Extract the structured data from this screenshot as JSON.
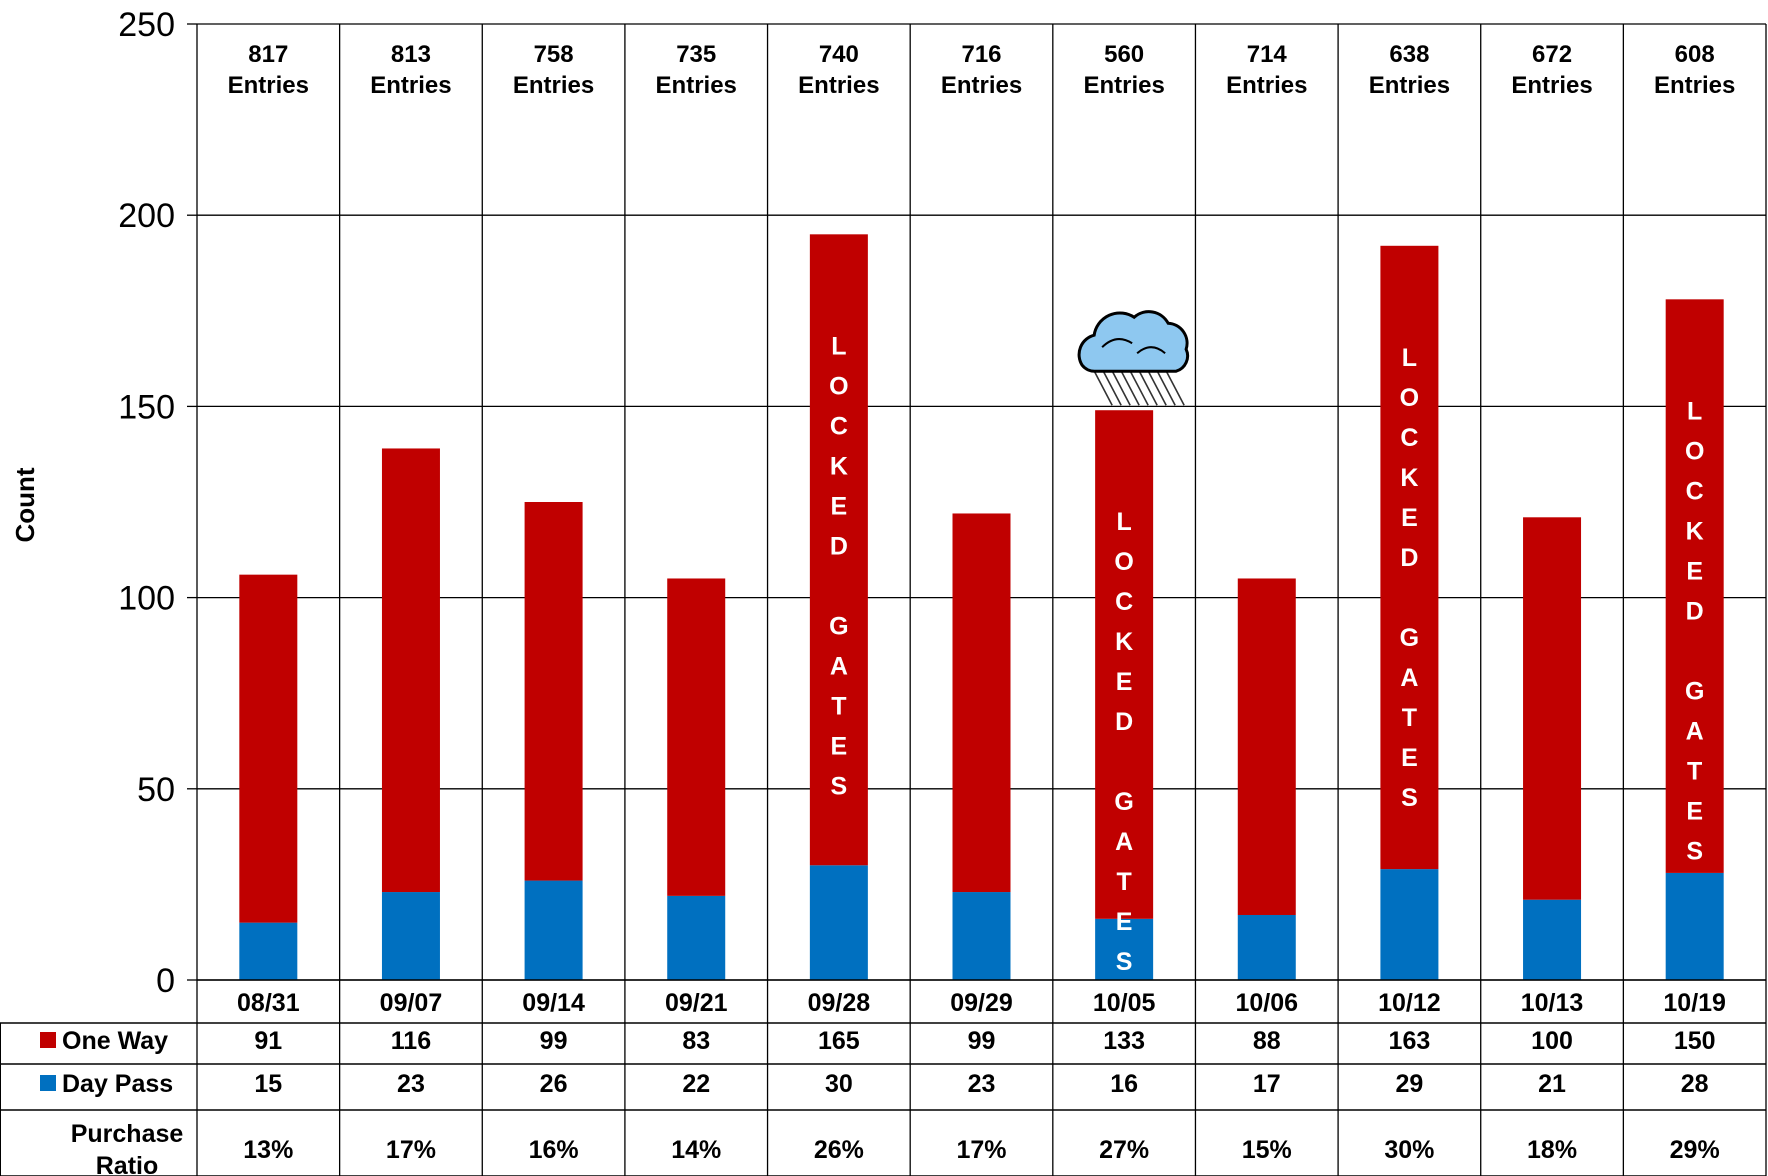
{
  "chart_data": {
    "type": "bar",
    "stacked": true,
    "ylabel": "Count",
    "ylim": [
      0,
      250
    ],
    "yticks": [
      0,
      50,
      100,
      150,
      200,
      250
    ],
    "grid": true,
    "categories": [
      "08/31",
      "09/07",
      "09/14",
      "09/21",
      "09/28",
      "09/29",
      "10/05",
      "10/06",
      "10/12",
      "10/13",
      "10/19"
    ],
    "entries": [
      "817",
      "813",
      "758",
      "735",
      "740",
      "716",
      "560",
      "714",
      "638",
      "672",
      "608"
    ],
    "entries_label": "Entries",
    "series": [
      {
        "name": "Day Pass",
        "color": "#0070c0",
        "values": [
          15,
          23,
          26,
          22,
          30,
          23,
          16,
          17,
          29,
          21,
          28
        ]
      },
      {
        "name": "One Way",
        "color": "#c00000",
        "values": [
          91,
          116,
          99,
          83,
          165,
          99,
          133,
          88,
          163,
          100,
          150
        ]
      }
    ],
    "table": {
      "rows": [
        {
          "label": "One Way",
          "color": "#c00000",
          "values": [
            "91",
            "116",
            "99",
            "83",
            "165",
            "99",
            "133",
            "88",
            "163",
            "100",
            "150"
          ]
        },
        {
          "label": "Day Pass",
          "color": "#0070c0",
          "values": [
            "15",
            "23",
            "26",
            "22",
            "30",
            "23",
            "16",
            "17",
            "29",
            "21",
            "28"
          ]
        },
        {
          "label_line1": "Purchase",
          "label_line2": "Ratio",
          "values": [
            "13%",
            "17%",
            "16%",
            "14%",
            "26%",
            "17%",
            "27%",
            "15%",
            "30%",
            "18%",
            "29%"
          ]
        }
      ]
    },
    "annotations": [
      {
        "category": "09/28",
        "text": "LOCKED GATES"
      },
      {
        "category": "10/05",
        "text": "LOCKED GATES"
      },
      {
        "category": "10/12",
        "text": "LOCKED GATES"
      },
      {
        "category": "10/19",
        "text": "LOCKED GATES"
      }
    ],
    "weather_icon": {
      "category": "10/05",
      "icon": "rain-cloud-icon"
    }
  }
}
